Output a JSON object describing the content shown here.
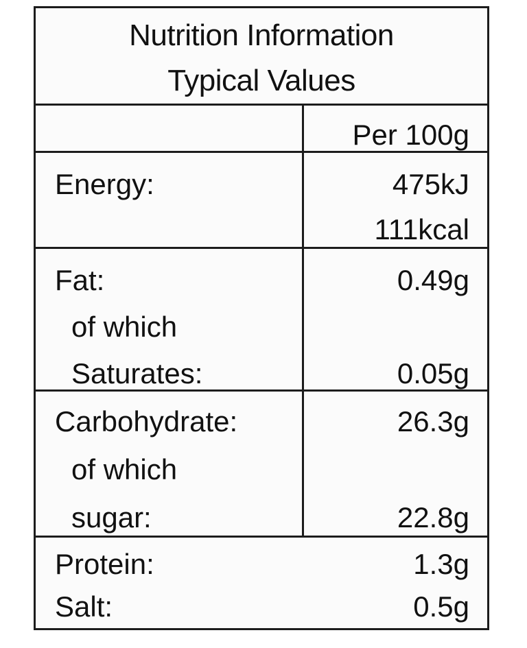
{
  "header": {
    "title": "Nutrition Information",
    "subtitle": "Typical Values"
  },
  "column_header": "Per 100g",
  "rows": {
    "energy": {
      "label": "Energy:",
      "value_kj": "475kJ",
      "value_kcal": "111kcal"
    },
    "fat": {
      "label": "Fat:",
      "value": "0.49g",
      "sub_label_1": "of which",
      "sub_label_2": "Saturates:",
      "sub_value": "0.05g"
    },
    "carbohydrate": {
      "label": "Carbohydrate:",
      "value": "26.3g",
      "sub_label_1": "of which",
      "sub_label_2": "sugar:",
      "sub_value": "22.8g"
    },
    "protein": {
      "label": "Protein:",
      "value": "1.3g"
    },
    "salt": {
      "label": "Salt:",
      "value": "0.5g"
    }
  }
}
